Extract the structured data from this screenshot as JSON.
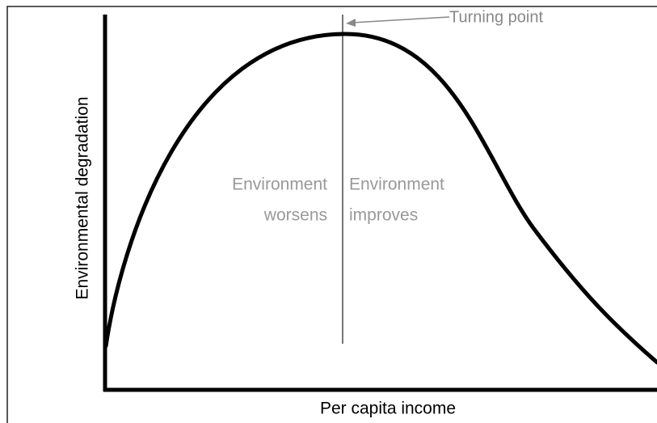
{
  "diagram": {
    "y_axis_label": "Environmental degradation",
    "x_axis_label": "Per capita income",
    "turning_point_label": "Turning point",
    "left_region": {
      "line1": "Environment",
      "line2": "worsens"
    },
    "right_region": {
      "line1": "Environment",
      "line2": "improves"
    }
  }
}
